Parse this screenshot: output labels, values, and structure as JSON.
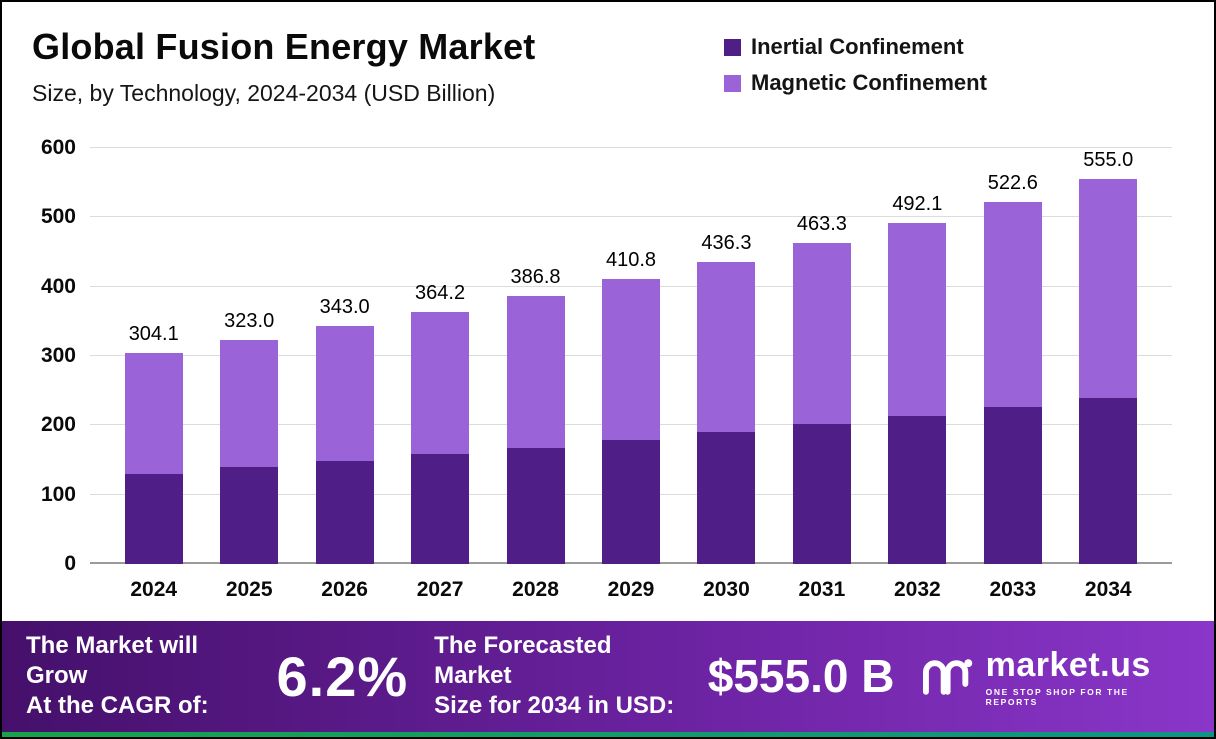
{
  "header": {
    "title": "Global Fusion Energy Market",
    "subtitle": "Size, by Technology, 2024-2034 (USD Billion)"
  },
  "legend": [
    {
      "label": "Inertial Confinement",
      "color": "#4f1f87"
    },
    {
      "label": "Magnetic Confinement",
      "color": "#9b63d8"
    }
  ],
  "chart_data": {
    "type": "bar",
    "stacked": true,
    "title": "Global Fusion Energy Market Size, by Technology, 2024-2034 (USD Billion)",
    "categories": [
      "2024",
      "2025",
      "2026",
      "2027",
      "2028",
      "2029",
      "2030",
      "2031",
      "2032",
      "2033",
      "2034"
    ],
    "series": [
      {
        "name": "Inertial Confinement",
        "color": "#4f1f87",
        "values": [
          130.0,
          140.0,
          149.0,
          158.0,
          168.0,
          179.0,
          190.0,
          202.0,
          214.0,
          226.0,
          240.0
        ]
      },
      {
        "name": "Magnetic Confinement",
        "color": "#9b63d8",
        "values": [
          174.1,
          183.0,
          194.0,
          206.2,
          218.8,
          231.8,
          246.3,
          261.3,
          278.1,
          296.6,
          315.0
        ]
      }
    ],
    "totals": [
      "304.1",
      "323.0",
      "343.0",
      "364.2",
      "386.8",
      "410.8",
      "436.3",
      "463.3",
      "492.1",
      "522.6",
      "555.0"
    ],
    "ylim": [
      0,
      600
    ],
    "yticks": [
      0,
      100,
      200,
      300,
      400,
      500,
      600
    ],
    "grid": true,
    "legend_position": "top-right"
  },
  "banner": {
    "cagr_label_line1": "The Market will Grow",
    "cagr_label_line2": "At the CAGR of:",
    "cagr_value": "6.2%",
    "forecast_label_line1": "The Forecasted Market",
    "forecast_label_line2": "Size for 2034 in USD:",
    "forecast_value": "$555.0 B",
    "brand": "market.us",
    "brand_tagline": "ONE STOP SHOP FOR THE REPORTS"
  }
}
